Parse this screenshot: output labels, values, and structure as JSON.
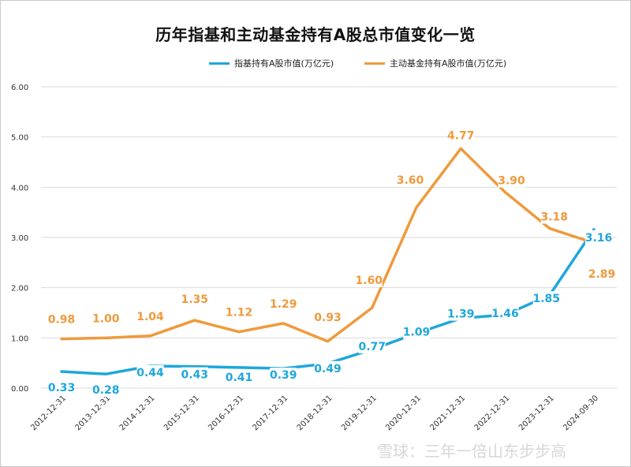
{
  "chart_data": {
    "type": "line",
    "title": "历年指基和主动基金持有A股总市值变化一览",
    "categories": [
      "2012-12-31",
      "2013-12-31",
      "2014-12-31",
      "2015-12-31",
      "2016-12-31",
      "2017-12-31",
      "2018-12-31",
      "2019-12-31",
      "2020-12-31",
      "2021-12-31",
      "2022-12-31",
      "2023-12-31",
      "2024-09-30"
    ],
    "series": [
      {
        "name": "指基持有A股市值(万亿元)",
        "color": "#1ea7dc",
        "values": [
          0.33,
          0.28,
          0.44,
          0.43,
          0.41,
          0.39,
          0.49,
          0.77,
          1.09,
          1.39,
          1.46,
          1.85,
          3.16
        ]
      },
      {
        "name": "主动基金持有A股市值(万亿元)",
        "color": "#ef9a3c",
        "values": [
          0.98,
          1.0,
          1.04,
          1.35,
          1.12,
          1.29,
          0.93,
          1.6,
          3.6,
          4.77,
          3.9,
          3.18,
          2.89
        ]
      }
    ],
    "ylim": [
      0,
      6
    ],
    "yticks": [
      "0.00",
      "1.00",
      "2.00",
      "3.00",
      "4.00",
      "5.00",
      "6.00"
    ],
    "grid": true,
    "legend": "top-center"
  },
  "watermark": "雪球：三年一倍山东步步高"
}
